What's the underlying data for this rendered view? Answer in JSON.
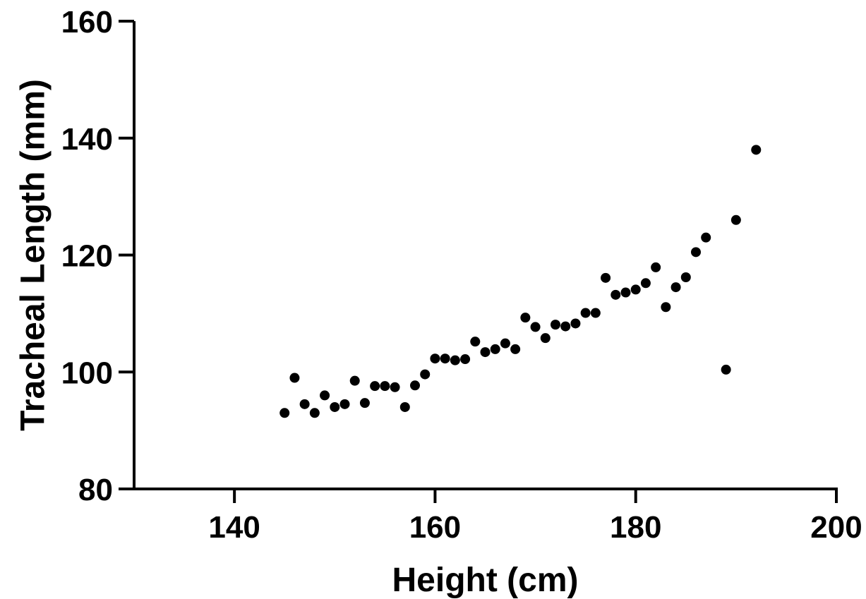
{
  "chart_data": {
    "type": "scatter",
    "xlabel": "Height (cm)",
    "ylabel": "Tracheal Length (mm)",
    "xlim": [
      130,
      200
    ],
    "ylim": [
      80,
      160
    ],
    "xticks": [
      140,
      160,
      180,
      200
    ],
    "yticks": [
      80,
      100,
      120,
      140,
      160
    ],
    "grid": false,
    "legend": "none",
    "marker_color": "#000000",
    "series": [
      {
        "points": [
          [
            145,
            93
          ],
          [
            146,
            99
          ],
          [
            147,
            94.5
          ],
          [
            148,
            93
          ],
          [
            149,
            96
          ],
          [
            150,
            94
          ],
          [
            151,
            94.5
          ],
          [
            152,
            98.5
          ],
          [
            153,
            94.7
          ],
          [
            154,
            97.6
          ],
          [
            155,
            97.6
          ],
          [
            156,
            97.4
          ],
          [
            157,
            94
          ],
          [
            158,
            97.7
          ],
          [
            159,
            99.6
          ],
          [
            160,
            102.3
          ],
          [
            161,
            102.3
          ],
          [
            162,
            102
          ],
          [
            163,
            102.2
          ],
          [
            164,
            105.2
          ],
          [
            165,
            103.4
          ],
          [
            166,
            103.9
          ],
          [
            167,
            104.9
          ],
          [
            168,
            103.9
          ],
          [
            169,
            109.3
          ],
          [
            170,
            107.7
          ],
          [
            171,
            105.8
          ],
          [
            172,
            108.1
          ],
          [
            173,
            107.8
          ],
          [
            174,
            108.3
          ],
          [
            175,
            110.1
          ],
          [
            176,
            110.1
          ],
          [
            177,
            116.1
          ],
          [
            178,
            113.2
          ],
          [
            179,
            113.6
          ],
          [
            180,
            114.1
          ],
          [
            181,
            115.2
          ],
          [
            182,
            117.9
          ],
          [
            183,
            111.1
          ],
          [
            184,
            114.5
          ],
          [
            185,
            116.2
          ],
          [
            186,
            120.5
          ],
          [
            187,
            123
          ],
          [
            189,
            100.4
          ],
          [
            190,
            126
          ],
          [
            192,
            138
          ]
        ]
      }
    ]
  }
}
